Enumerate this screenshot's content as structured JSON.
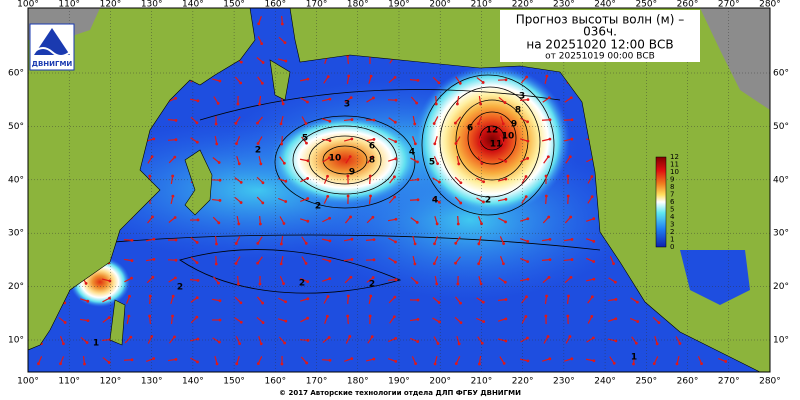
{
  "header": {
    "title": "Прогноз высоты волн (м) –",
    "lead": "036ч.",
    "valid": "на 20251020 12:00 ВСВ",
    "issued": "от 20251019 00:00 ВСВ"
  },
  "logo": {
    "text": "ДВНИГМИ"
  },
  "map": {
    "lon_ticks": [
      {
        "value": 100,
        "label": "100°"
      },
      {
        "value": 110,
        "label": "110°"
      },
      {
        "value": 120,
        "label": "120°"
      },
      {
        "value": 130,
        "label": "130°"
      },
      {
        "value": 140,
        "label": "140°"
      },
      {
        "value": 150,
        "label": "150°"
      },
      {
        "value": 160,
        "label": "160°"
      },
      {
        "value": 170,
        "label": "170°"
      },
      {
        "value": 180,
        "label": "180°"
      },
      {
        "value": 190,
        "label": "190°"
      },
      {
        "value": 200,
        "label": "200°"
      },
      {
        "value": 210,
        "label": "210°"
      },
      {
        "value": 220,
        "label": "220°"
      },
      {
        "value": 230,
        "label": "230°"
      },
      {
        "value": 240,
        "label": "240°"
      },
      {
        "value": 250,
        "label": "250°"
      },
      {
        "value": 260,
        "label": "260°"
      },
      {
        "value": 270,
        "label": "270°"
      },
      {
        "value": 280,
        "label": "280°"
      }
    ],
    "lat_ticks": [
      {
        "value": 10,
        "label": "10°"
      },
      {
        "value": 20,
        "label": "20°"
      },
      {
        "value": 30,
        "label": "30°"
      },
      {
        "value": 40,
        "label": "40°"
      },
      {
        "value": 50,
        "label": "50°"
      },
      {
        "value": 60,
        "label": "60°"
      }
    ],
    "contour_labels": [
      "10",
      "9",
      "8",
      "6",
      "5",
      "4",
      "3",
      "2",
      "12",
      "11",
      "10",
      "9",
      "8",
      "6",
      "5",
      "4",
      "3",
      "2",
      "2",
      "2",
      "2",
      "1",
      "1",
      "2"
    ]
  },
  "colorbar": {
    "labels": [
      "12",
      "11",
      "10",
      "9",
      "8",
      "7",
      "6",
      "5",
      "4",
      "3",
      "2",
      "1",
      "0"
    ]
  },
  "footer": {
    "copyright": "© 2017 Авторские технологии отдела ДЛП ФГБУ ДВНИГМИ"
  }
}
